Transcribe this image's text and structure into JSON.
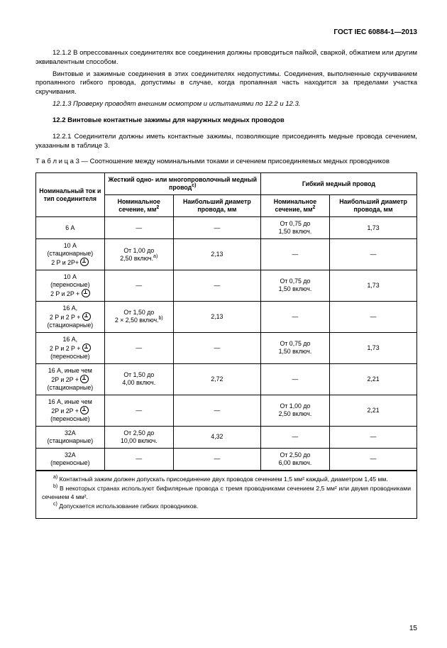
{
  "header": "ГОСТ IEC 60884-1—2013",
  "para1": "12.1.2 В опрессованных соединителях все соединения должны проводиться пайкой, сваркой, обжатием или другим эквивалентным способом.",
  "para2": "Винтовые и зажимные соединения в этих соединителях недопустимы. Соединения, выполненные скручиванием пропаянного гибкого провода, допустимы в случае, когда пропаянная часть находится за пределами участка скручивания.",
  "para3": "12.1.3 Проверку проводят внешним осмотром и испытаниями по 12.2 и 12.3.",
  "h122": "12.2 Винтовые контактные зажимы для наружных медных проводов",
  "para4": "12.2.1 Соединители должны иметь контактные зажимы, позволяющие присоединять медные провода сечением, указанным в таблице 3.",
  "tcaption": "Т а б л и ц а  3 — Соотношение между номинальными токами и сечением присоединяемых медных проводников",
  "th": {
    "c1": "Номинальный ток и тип соединителя",
    "g1": "Жесткий одно- или многопроволочный медный провод",
    "g1sup": "c)",
    "g2": "Гибкий медный провод",
    "s1": "Номинальное сечение, мм",
    "s2": "Наибольший диаметр провода, мм",
    "s3": "Номинальное сечение, мм",
    "s4": "Наибольший диаметр провода, мм"
  },
  "rows": [
    {
      "c0": "6 А",
      "c1": "—",
      "c2": "—",
      "c3": "От 0,75 до 1,50 включ.",
      "c4": "1,73"
    },
    {
      "c0": "10 А (стационарные) 2 P и 2P+",
      "c1": "От 1,00 до 2,50 включ.",
      "c1sup": "a)",
      "c2": "2,13",
      "c3": "—",
      "c4": "—",
      "ground": true
    },
    {
      "c0": "10 А (переносные) 2 P и 2P +",
      "c1": "—",
      "c2": "—",
      "c3": "От 0,75 до 1,50 включ.",
      "c4": "1,73",
      "ground": true
    },
    {
      "c0": "16 А, 2 P и 2 P + (стационарные)",
      "c1": "От 1,50 до 2 × 2,50 включ.",
      "c1sup": "b)",
      "c2": "2,13",
      "c3": "—",
      "c4": "—",
      "ground": true,
      "gpos": 1
    },
    {
      "c0": "16 А, 2 P и 2 P + (переносные)",
      "c1": "—",
      "c2": "—",
      "c3": "От 0,75 до 1,50 включ.",
      "c4": "1,73",
      "ground": true,
      "gpos": 1
    },
    {
      "c0": "16 А, иные чем 2P и 2P + (стационарные)",
      "c1": "От 1,50 до 4,00 включ.",
      "c2": "2,72",
      "c3": "—",
      "c4": "2,21",
      "ground": true,
      "gpos": 2
    },
    {
      "c0": "16 А, иные чем 2P и 2P + (переносные)",
      "c1": "—",
      "c2": "—",
      "c3": "От 1,00 до 2,50 включ.",
      "c4": "2,21",
      "ground": true,
      "gpos": 2
    },
    {
      "c0": "32А (стационарные)",
      "c1": "От 2,50 до 10,00 включ.",
      "c2": "4,32",
      "c3": "—",
      "c4": "—"
    },
    {
      "c0": "32А (переносные)",
      "c1": "—",
      "c2": "—",
      "c3": "От 2,50 до 6,00 включ.",
      "c4": "—"
    }
  ],
  "foot": {
    "a": "Контактный зажим должен допускать присоединение двух проводов сечением 1,5 мм² каждый, диаметром 1,45 мм.",
    "b": "В некоторых странах используют бифилярные провода с тремя проводниками сечением 2,5 мм² или двумя проводниками сечением 4 мм².",
    "c": "Допускается использование гибких проводников."
  },
  "page_number": "15"
}
